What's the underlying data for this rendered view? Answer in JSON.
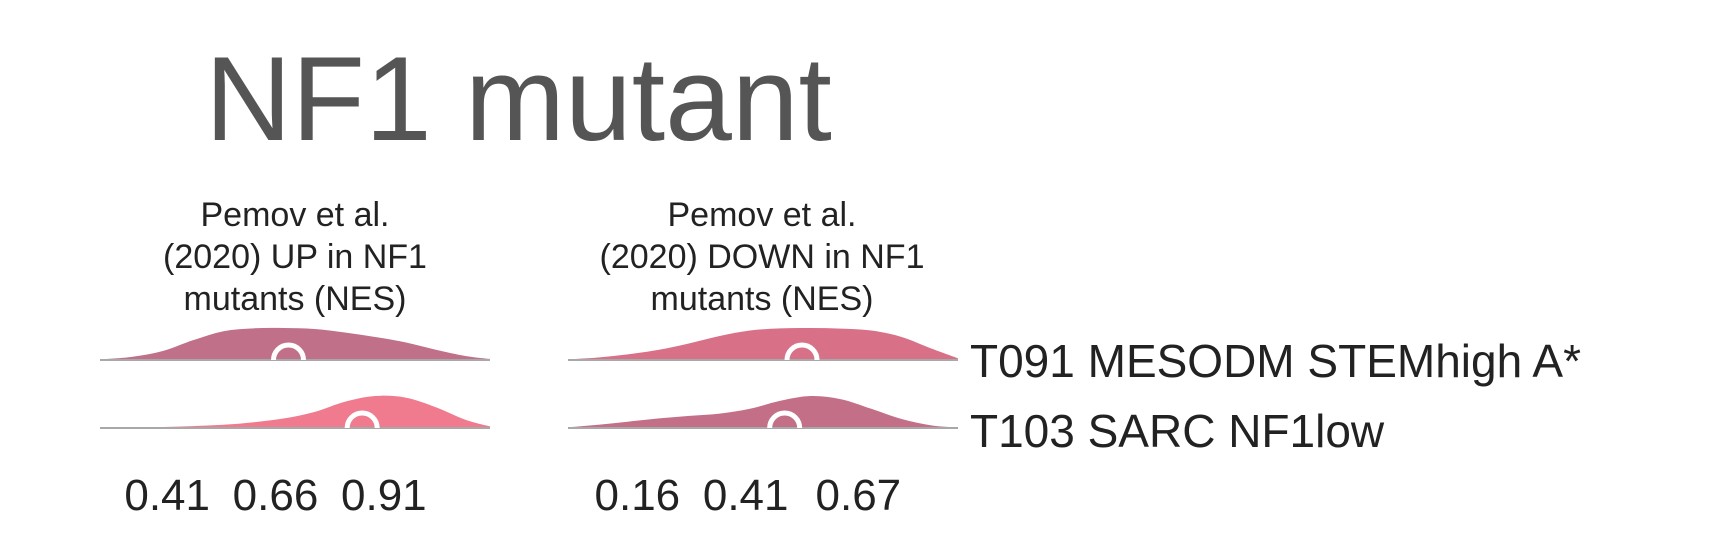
{
  "chart_data": {
    "type": "area",
    "title": "NF1 mutant",
    "rows": [
      "T091 MESODM STEMhigh A*",
      "T103 SARC NF1low"
    ],
    "panels": [
      {
        "title_lines": [
          "Pemov et al.",
          "(2020) UP in NF1",
          "mutants (NES)"
        ],
        "tick_values": [
          0.41,
          0.66,
          0.91
        ],
        "tick_labels": [
          "0.41",
          "0.66",
          "0.91"
        ],
        "xlim": [
          0.255,
          1.155
        ],
        "densities": [
          {
            "row": "T091 MESODM STEMhigh A*",
            "color": "#c07088",
            "median": 0.69,
            "x": [
              0.255,
              0.33,
              0.4,
              0.47,
              0.54,
              0.61,
              0.68,
              0.75,
              0.82,
              0.89,
              0.96,
              1.03,
              1.1,
              1.155
            ],
            "density": [
              0.02,
              0.1,
              0.28,
              0.62,
              0.9,
              0.99,
              1.0,
              0.97,
              0.86,
              0.72,
              0.55,
              0.32,
              0.12,
              0.03
            ]
          },
          {
            "row": "T103 SARC NF1low",
            "color": "#f07a8e",
            "median": 0.86,
            "x": [
              0.255,
              0.33,
              0.4,
              0.47,
              0.54,
              0.61,
              0.68,
              0.75,
              0.82,
              0.89,
              0.96,
              1.03,
              1.1,
              1.155
            ],
            "density": [
              0.01,
              0.02,
              0.03,
              0.06,
              0.1,
              0.18,
              0.3,
              0.5,
              0.82,
              1.0,
              0.95,
              0.65,
              0.25,
              0.05
            ]
          }
        ]
      },
      {
        "title_lines": [
          "Pemov et al.",
          "(2020) DOWN in NF1",
          "mutants (NES)"
        ],
        "tick_values": [
          0.16,
          0.41,
          0.67
        ],
        "tick_labels": [
          "0.16",
          "0.41",
          "0.67"
        ],
        "xlim": [
          0.0,
          0.9
        ],
        "densities": [
          {
            "row": "T091 MESODM STEMhigh A*",
            "color": "#d87088",
            "median": 0.54,
            "x": [
              0.0,
              0.07,
              0.14,
              0.21,
              0.28,
              0.35,
              0.42,
              0.49,
              0.56,
              0.63,
              0.7,
              0.77,
              0.84,
              0.9
            ],
            "density": [
              0.02,
              0.08,
              0.18,
              0.32,
              0.52,
              0.75,
              0.92,
              0.99,
              1.0,
              0.98,
              0.92,
              0.72,
              0.35,
              0.05
            ]
          },
          {
            "row": "T103 SARC NF1low",
            "color": "#c46f88",
            "median": 0.5,
            "x": [
              0.0,
              0.07,
              0.14,
              0.21,
              0.28,
              0.35,
              0.42,
              0.49,
              0.56,
              0.63,
              0.7,
              0.77,
              0.84,
              0.9
            ],
            "density": [
              0.02,
              0.1,
              0.2,
              0.3,
              0.38,
              0.45,
              0.6,
              0.85,
              1.0,
              0.9,
              0.6,
              0.28,
              0.08,
              0.02
            ]
          }
        ]
      }
    ]
  }
}
